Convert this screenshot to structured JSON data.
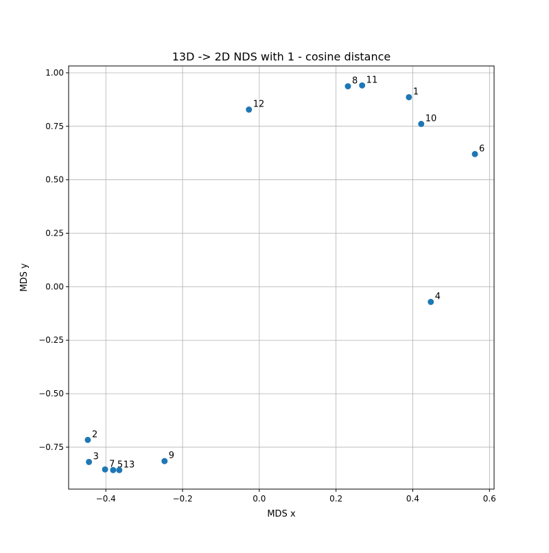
{
  "chart_data": {
    "type": "scatter",
    "title": "13D -> 2D NDS with 1 - cosine distance",
    "xlabel": "MDS x",
    "ylabel": "MDS y",
    "xlim": [
      -0.497,
      0.612
    ],
    "ylim": [
      -0.946,
      1.032
    ],
    "xticks": [
      -0.4,
      -0.2,
      0.0,
      0.2,
      0.4,
      0.6
    ],
    "xtick_labels": [
      "−0.4",
      "−0.2",
      "0.0",
      "0.2",
      "0.4",
      "0.6"
    ],
    "yticks": [
      -0.75,
      -0.5,
      -0.25,
      0.0,
      0.25,
      0.5,
      0.75,
      1.0
    ],
    "ytick_labels": [
      "−0.75",
      "−0.50",
      "−0.25",
      "0.00",
      "0.25",
      "0.50",
      "0.75",
      "1.00"
    ],
    "grid": true,
    "color": "#1f77b4",
    "points": [
      {
        "label": "1",
        "x": 0.39,
        "y": 0.886
      },
      {
        "label": "2",
        "x": -0.447,
        "y": -0.716
      },
      {
        "label": "3",
        "x": -0.444,
        "y": -0.819
      },
      {
        "label": "4",
        "x": 0.447,
        "y": -0.071
      },
      {
        "label": "5",
        "x": -0.381,
        "y": -0.857
      },
      {
        "label": "6",
        "x": 0.562,
        "y": 0.62
      },
      {
        "label": "7",
        "x": -0.402,
        "y": -0.854
      },
      {
        "label": "8",
        "x": 0.231,
        "y": 0.937
      },
      {
        "label": "9",
        "x": -0.247,
        "y": -0.815
      },
      {
        "label": "10",
        "x": 0.422,
        "y": 0.761
      },
      {
        "label": "11",
        "x": 0.268,
        "y": 0.941
      },
      {
        "label": "12",
        "x": -0.027,
        "y": 0.828
      },
      {
        "label": "13",
        "x": -0.365,
        "y": -0.857
      }
    ]
  }
}
